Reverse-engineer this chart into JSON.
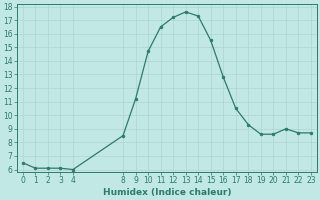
{
  "x": [
    0,
    1,
    2,
    3,
    4,
    8,
    9,
    10,
    11,
    12,
    13,
    14,
    15,
    16,
    17,
    18,
    19,
    20,
    21,
    22,
    23
  ],
  "y": [
    6.5,
    6.1,
    6.1,
    6.1,
    6.0,
    8.5,
    11.2,
    14.7,
    16.5,
    17.2,
    17.6,
    17.3,
    15.5,
    12.8,
    10.5,
    9.3,
    8.6,
    8.6,
    9.0,
    8.7,
    8.7
  ],
  "xlabel": "Humidex (Indice chaleur)",
  "ylim": [
    5.8,
    18.2
  ],
  "xlim": [
    -0.5,
    23.5
  ],
  "yticks": [
    6,
    7,
    8,
    9,
    10,
    11,
    12,
    13,
    14,
    15,
    16,
    17,
    18
  ],
  "xticks": [
    0,
    1,
    2,
    3,
    4,
    8,
    9,
    10,
    11,
    12,
    13,
    14,
    15,
    16,
    17,
    18,
    19,
    20,
    21,
    22,
    23
  ],
  "line_color": "#2d7a6e",
  "marker_color": "#2d7a6e",
  "bg_color": "#c2e8e5",
  "grid_color": "#aed4d0",
  "tick_fontsize": 5.5,
  "xlabel_fontsize": 6.5
}
